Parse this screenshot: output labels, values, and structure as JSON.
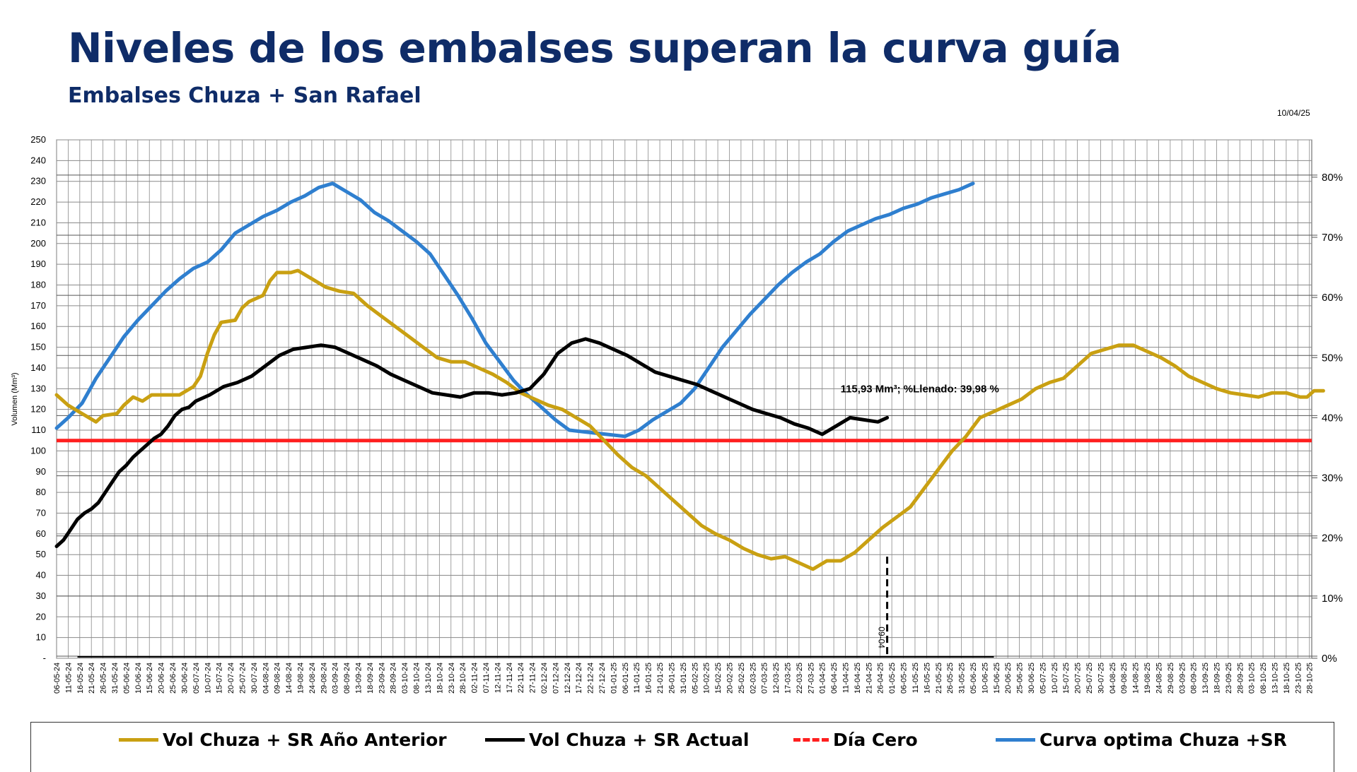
{
  "header": {
    "title": "Niveles de los embalses superan la curva guía",
    "subtitle": "Embalses Chuza + San Rafael",
    "date": "10/04/25"
  },
  "legend": [
    {
      "label": "Vol Chuza + SR Año Anterior",
      "color": "#c9a012",
      "style": "solid"
    },
    {
      "label": "Vol Chuza + SR Actual",
      "color": "#000000",
      "style": "solid"
    },
    {
      "label": "Día Cero",
      "color": "#ff1f1f",
      "style": "dashed"
    },
    {
      "label": "Curva optima Chuza +SR",
      "color": "#2f7fcf",
      "style": "solid"
    }
  ],
  "chart_data": {
    "type": "line",
    "ylabel": "Volumen (Mm³)",
    "ylim": [
      0,
      250
    ],
    "yticks": [
      "-",
      "10",
      "20",
      "30",
      "40",
      "50",
      "60",
      "70",
      "80",
      "90",
      "100",
      "110",
      "120",
      "130",
      "140",
      "150",
      "160",
      "170",
      "180",
      "190",
      "200",
      "210",
      "220",
      "230",
      "240",
      "250"
    ],
    "y2ticks": [
      "0%",
      "10%",
      "20%",
      "30%",
      "40%",
      "50%",
      "60%",
      "70%",
      "80%"
    ],
    "y2_capacity_mm3": 290,
    "categories": [
      "06-05-24",
      "11-05-24",
      "16-05-24",
      "21-05-24",
      "26-05-24",
      "31-05-24",
      "05-06-24",
      "10-06-24",
      "15-06-24",
      "20-06-24",
      "25-06-24",
      "30-06-24",
      "05-07-24",
      "10-07-24",
      "15-07-24",
      "20-07-24",
      "25-07-24",
      "30-07-24",
      "04-08-24",
      "09-08-24",
      "14-08-24",
      "19-08-24",
      "24-08-24",
      "29-08-24",
      "03-09-24",
      "08-09-24",
      "13-09-24",
      "18-09-24",
      "23-09-24",
      "28-09-24",
      "03-10-24",
      "08-10-24",
      "13-10-24",
      "18-10-24",
      "23-10-24",
      "28-10-24",
      "02-11-24",
      "07-11-24",
      "12-11-24",
      "17-11-24",
      "22-11-24",
      "27-11-24",
      "02-12-24",
      "07-12-24",
      "12-12-24",
      "17-12-24",
      "22-12-24",
      "27-12-24",
      "01-01-25",
      "06-01-25",
      "11-01-25",
      "16-01-25",
      "21-01-25",
      "26-01-25",
      "31-01-25",
      "05-02-25",
      "10-02-25",
      "15-02-25",
      "20-02-25",
      "25-02-25",
      "02-03-25",
      "07-03-25",
      "12-03-25",
      "17-03-25",
      "22-03-25",
      "27-03-25",
      "01-04-25",
      "06-04-25",
      "11-04-25",
      "16-04-25",
      "21-04-25",
      "26-04-25",
      "01-05-25",
      "06-05-25",
      "11-05-25",
      "16-05-25",
      "21-05-25",
      "26-05-25",
      "31-05-25",
      "05-06-25",
      "10-06-25",
      "15-06-25",
      "20-06-25",
      "25-06-25",
      "30-06-25",
      "05-07-25",
      "10-07-25",
      "15-07-25",
      "20-07-25",
      "25-07-25",
      "30-07-25",
      "04-08-25",
      "09-08-25",
      "14-08-25",
      "19-08-25",
      "24-08-25",
      "29-08-25",
      "03-09-25",
      "08-09-25",
      "13-09-25",
      "18-09-25",
      "23-09-25",
      "28-09-25",
      "03-10-25",
      "08-10-25",
      "13-10-25",
      "18-10-25",
      "23-10-25",
      "28-10-25"
    ],
    "series": [
      {
        "name": "Curva optima Chuza +SR",
        "color": "#2f7fcf",
        "points": [
          [
            0,
            111
          ],
          [
            5,
            116
          ],
          [
            11,
            123
          ],
          [
            17,
            135
          ],
          [
            23,
            145
          ],
          [
            29,
            155
          ],
          [
            35,
            163
          ],
          [
            41,
            170
          ],
          [
            47,
            177
          ],
          [
            53,
            183
          ],
          [
            59,
            188
          ],
          [
            65,
            191
          ],
          [
            71,
            197
          ],
          [
            77,
            205
          ],
          [
            83,
            209
          ],
          [
            89,
            213
          ],
          [
            95,
            216
          ],
          [
            101,
            220
          ],
          [
            107,
            223
          ],
          [
            113,
            227
          ],
          [
            119,
            229
          ],
          [
            125,
            225
          ],
          [
            131,
            221
          ],
          [
            137,
            215
          ],
          [
            143,
            211
          ],
          [
            149,
            206
          ],
          [
            155,
            201
          ],
          [
            161,
            195
          ],
          [
            167,
            185
          ],
          [
            173,
            175
          ],
          [
            179,
            164
          ],
          [
            185,
            152
          ],
          [
            191,
            143
          ],
          [
            197,
            134
          ],
          [
            203,
            127
          ],
          [
            209,
            121
          ],
          [
            215,
            115
          ],
          [
            221,
            110
          ],
          [
            229,
            109
          ],
          [
            237,
            108
          ],
          [
            245,
            107
          ],
          [
            251,
            110
          ],
          [
            257,
            115
          ],
          [
            263,
            119
          ],
          [
            269,
            123
          ],
          [
            275,
            130
          ],
          [
            281,
            140
          ],
          [
            287,
            150
          ],
          [
            293,
            158
          ],
          [
            299,
            166
          ],
          [
            305,
            173
          ],
          [
            311,
            180
          ],
          [
            317,
            186
          ],
          [
            323,
            191
          ],
          [
            329,
            195
          ],
          [
            335,
            201
          ],
          [
            341,
            206
          ],
          [
            347,
            209
          ],
          [
            353,
            212
          ],
          [
            359,
            214
          ],
          [
            365,
            217
          ],
          [
            371,
            219
          ],
          [
            377,
            222
          ],
          [
            383,
            224
          ],
          [
            389,
            226
          ],
          [
            395,
            229
          ]
        ]
      },
      {
        "name": "Vol Chuza + SR Año Anterior",
        "color": "#c9a012",
        "points": [
          [
            0,
            127
          ],
          [
            5,
            122
          ],
          [
            11,
            118
          ],
          [
            17,
            114
          ],
          [
            20,
            117
          ],
          [
            26,
            118
          ],
          [
            29,
            122
          ],
          [
            33,
            126
          ],
          [
            37,
            124
          ],
          [
            41,
            127
          ],
          [
            47,
            127
          ],
          [
            53,
            127
          ],
          [
            59,
            131
          ],
          [
            62,
            136
          ],
          [
            65,
            147
          ],
          [
            68,
            156
          ],
          [
            71,
            162
          ],
          [
            77,
            163
          ],
          [
            80,
            169
          ],
          [
            83,
            172
          ],
          [
            89,
            175
          ],
          [
            92,
            182
          ],
          [
            95,
            186
          ],
          [
            101,
            186
          ],
          [
            104,
            187
          ],
          [
            110,
            183
          ],
          [
            116,
            179
          ],
          [
            122,
            177
          ],
          [
            128,
            176
          ],
          [
            134,
            170
          ],
          [
            140,
            165
          ],
          [
            146,
            160
          ],
          [
            152,
            155
          ],
          [
            158,
            150
          ],
          [
            164,
            145
          ],
          [
            170,
            143
          ],
          [
            176,
            143
          ],
          [
            182,
            140
          ],
          [
            188,
            137
          ],
          [
            194,
            133
          ],
          [
            200,
            128
          ],
          [
            206,
            125
          ],
          [
            212,
            122
          ],
          [
            218,
            120
          ],
          [
            224,
            116
          ],
          [
            230,
            112
          ],
          [
            236,
            105
          ],
          [
            242,
            98
          ],
          [
            248,
            92
          ],
          [
            254,
            88
          ],
          [
            260,
            82
          ],
          [
            266,
            76
          ],
          [
            272,
            70
          ],
          [
            278,
            64
          ],
          [
            284,
            60
          ],
          [
            290,
            57
          ],
          [
            296,
            53
          ],
          [
            302,
            50
          ],
          [
            308,
            48
          ],
          [
            314,
            49
          ],
          [
            320,
            46
          ],
          [
            326,
            43
          ],
          [
            332,
            47
          ],
          [
            338,
            47
          ],
          [
            344,
            51
          ],
          [
            350,
            57
          ],
          [
            356,
            63
          ],
          [
            362,
            68
          ],
          [
            368,
            73
          ],
          [
            374,
            82
          ],
          [
            380,
            91
          ],
          [
            386,
            100
          ],
          [
            392,
            107
          ],
          [
            398,
            116
          ],
          [
            404,
            119
          ],
          [
            410,
            122
          ],
          [
            416,
            125
          ],
          [
            422,
            130
          ],
          [
            428,
            133
          ],
          [
            434,
            135
          ],
          [
            440,
            141
          ],
          [
            446,
            147
          ],
          [
            452,
            149
          ],
          [
            458,
            151
          ],
          [
            464,
            151
          ],
          [
            470,
            148
          ],
          [
            476,
            145
          ],
          [
            482,
            141
          ],
          [
            488,
            136
          ],
          [
            494,
            133
          ],
          [
            500,
            130
          ],
          [
            506,
            128
          ],
          [
            512,
            127
          ],
          [
            518,
            126
          ],
          [
            524,
            128
          ],
          [
            530,
            128
          ],
          [
            536,
            126
          ],
          [
            539,
            126
          ],
          [
            542,
            129
          ],
          [
            546,
            129
          ]
        ]
      },
      {
        "name": "Vol Chuza + SR Actual",
        "color": "#000000",
        "points": [
          [
            0,
            54
          ],
          [
            3,
            57
          ],
          [
            6,
            62
          ],
          [
            9,
            67
          ],
          [
            12,
            70
          ],
          [
            15,
            72
          ],
          [
            18,
            75
          ],
          [
            21,
            80
          ],
          [
            24,
            85
          ],
          [
            27,
            90
          ],
          [
            30,
            93
          ],
          [
            33,
            97
          ],
          [
            36,
            100
          ],
          [
            39,
            103
          ],
          [
            42,
            106
          ],
          [
            45,
            108
          ],
          [
            48,
            112
          ],
          [
            51,
            117
          ],
          [
            54,
            120
          ],
          [
            57,
            121
          ],
          [
            60,
            124
          ],
          [
            66,
            127
          ],
          [
            72,
            131
          ],
          [
            78,
            133
          ],
          [
            84,
            136
          ],
          [
            90,
            141
          ],
          [
            96,
            146
          ],
          [
            102,
            149
          ],
          [
            108,
            150
          ],
          [
            114,
            151
          ],
          [
            120,
            150
          ],
          [
            126,
            147
          ],
          [
            132,
            144
          ],
          [
            138,
            141
          ],
          [
            144,
            137
          ],
          [
            150,
            134
          ],
          [
            156,
            131
          ],
          [
            162,
            128
          ],
          [
            168,
            127
          ],
          [
            174,
            126
          ],
          [
            180,
            128
          ],
          [
            186,
            128
          ],
          [
            192,
            127
          ],
          [
            198,
            128
          ],
          [
            204,
            130
          ],
          [
            210,
            137
          ],
          [
            216,
            147
          ],
          [
            222,
            152
          ],
          [
            228,
            154
          ],
          [
            234,
            152
          ],
          [
            240,
            149
          ],
          [
            246,
            146
          ],
          [
            252,
            142
          ],
          [
            258,
            138
          ],
          [
            264,
            136
          ],
          [
            270,
            134
          ],
          [
            276,
            132
          ],
          [
            282,
            129
          ],
          [
            288,
            126
          ],
          [
            294,
            123
          ],
          [
            300,
            120
          ],
          [
            306,
            118
          ],
          [
            312,
            116
          ],
          [
            318,
            113
          ],
          [
            324,
            111
          ],
          [
            330,
            108
          ],
          [
            336,
            112
          ],
          [
            342,
            116
          ],
          [
            348,
            115
          ],
          [
            354,
            114
          ],
          [
            358,
            116
          ]
        ]
      }
    ],
    "reference_line": {
      "name": "Día Cero",
      "value": 105,
      "color": "#ff1f1f"
    },
    "day_zero_marker": {
      "label": "09-04",
      "from": 0,
      "to": 49
    },
    "bottom_line": {
      "from": 9,
      "to": 404,
      "value": 0
    },
    "annotation": {
      "text": "115,93 Mm³; %Llenado: 39,98 %"
    }
  }
}
